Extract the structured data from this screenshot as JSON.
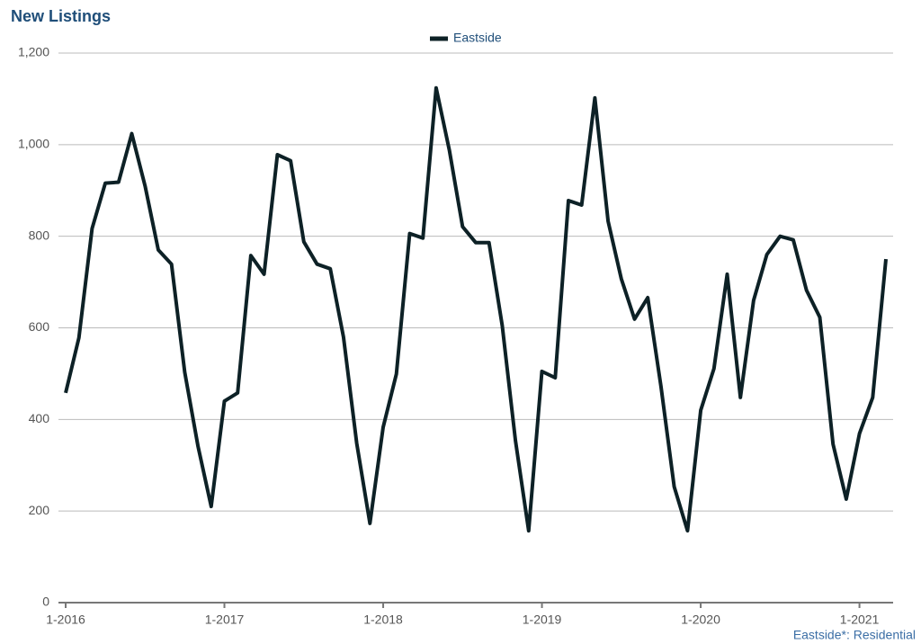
{
  "chart_data": {
    "type": "line",
    "title": "New Listings",
    "footnote": "Eastside*: Residential",
    "categories": [
      "1-2016",
      null,
      null,
      null,
      null,
      null,
      null,
      null,
      null,
      null,
      null,
      null,
      "1-2017",
      null,
      null,
      null,
      null,
      null,
      null,
      null,
      null,
      null,
      null,
      null,
      "1-2018",
      null,
      null,
      null,
      null,
      null,
      null,
      null,
      null,
      null,
      null,
      null,
      "1-2019",
      null,
      null,
      null,
      null,
      null,
      null,
      null,
      null,
      null,
      null,
      null,
      "1-2020",
      null,
      null,
      null,
      null,
      null,
      null,
      null,
      null,
      null,
      null,
      null,
      "1-2021",
      null,
      null
    ],
    "series": [
      {
        "name": "Eastside",
        "color": "#0d2126",
        "values": [
          458,
          578,
          817,
          916,
          918,
          1024,
          910,
          770,
          739,
          503,
          342,
          210,
          440,
          458,
          758,
          717,
          978,
          965,
          788,
          739,
          729,
          580,
          348,
          173,
          383,
          499,
          806,
          796,
          1124,
          988,
          821,
          786,
          786,
          605,
          354,
          157,
          505,
          491,
          878,
          868,
          1102,
          833,
          707,
          619,
          666,
          472,
          253,
          157,
          420,
          511,
          717,
          448,
          660,
          760,
          800,
          792,
          682,
          623,
          346,
          226,
          369,
          448,
          750
        ]
      }
    ],
    "ylim": [
      0,
      1200
    ],
    "yticks": [
      0,
      200,
      400,
      600,
      800,
      {
        "value": 1000,
        "label": "1,000"
      },
      {
        "value": 1200,
        "label": "1,200"
      }
    ],
    "grid": true,
    "legend": "top"
  }
}
